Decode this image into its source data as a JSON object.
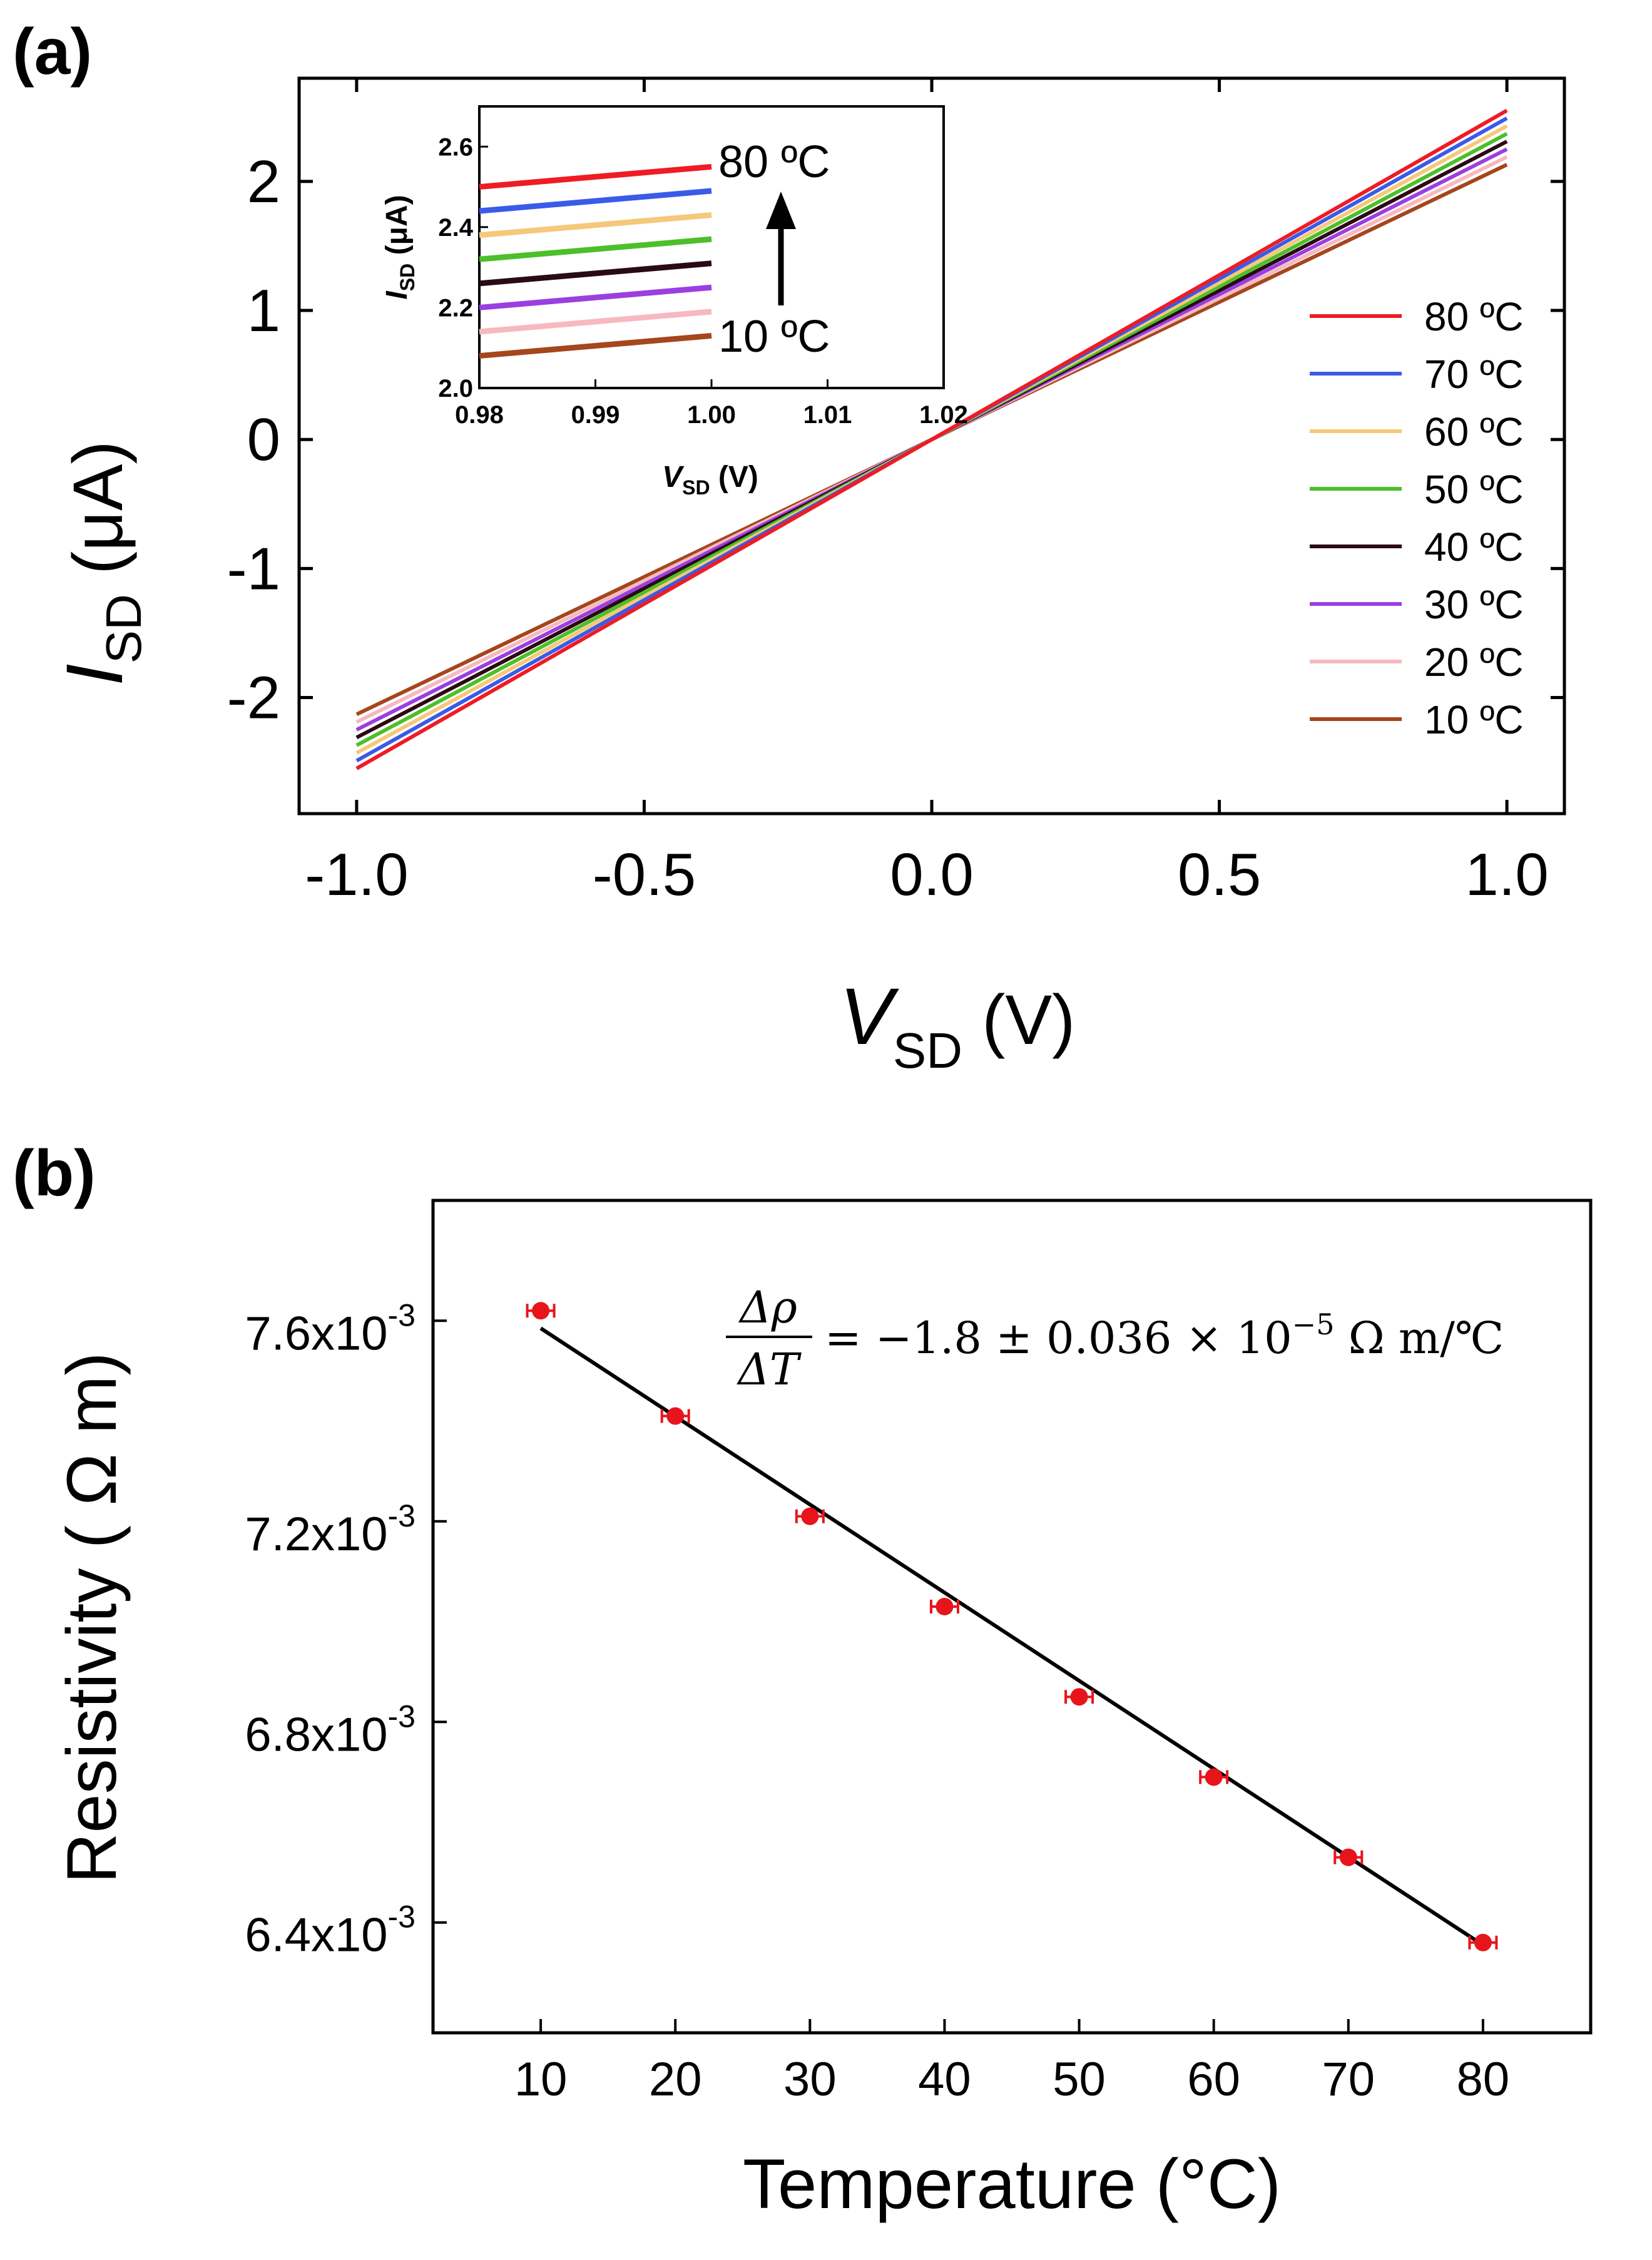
{
  "chart_data": [
    {
      "panel": "(a)",
      "type": "line",
      "xlabel": "V",
      "xlabel_sub": "SD",
      "xlabel_unit": " (V)",
      "ylabel": "I",
      "ylabel_sub": "SD",
      "ylabel_unit": " (μA)",
      "xlim": [
        -1.1,
        1.1
      ],
      "ylim": [
        -2.9,
        2.8
      ],
      "x_ticks": [
        -1.0,
        -0.5,
        0.0,
        0.5,
        1.0
      ],
      "x_tick_labels": [
        "-1.0",
        "-0.5",
        "0.0",
        "0.5",
        "1.0"
      ],
      "y_ticks": [
        -2,
        -1,
        0,
        1,
        2
      ],
      "y_tick_labels": [
        "-2",
        "-1",
        "0",
        "1",
        "2"
      ],
      "legend_position": "lower-right",
      "series": [
        {
          "name": "80 ºC",
          "color": "#ee1c24",
          "x": [
            -1.0,
            1.0
          ],
          "y": [
            -2.55,
            2.55
          ]
        },
        {
          "name": "70 ºC",
          "color": "#3a5be8",
          "x": [
            -1.0,
            1.0
          ],
          "y": [
            -2.49,
            2.49
          ]
        },
        {
          "name": "60 ºC",
          "color": "#f5c87a",
          "x": [
            -1.0,
            1.0
          ],
          "y": [
            -2.43,
            2.43
          ]
        },
        {
          "name": "50 ºC",
          "color": "#4cbf2a",
          "x": [
            -1.0,
            1.0
          ],
          "y": [
            -2.37,
            2.37
          ]
        },
        {
          "name": "40 ºC",
          "color": "#2b0a14",
          "x": [
            -1.0,
            1.0
          ],
          "y": [
            -2.31,
            2.31
          ]
        },
        {
          "name": "30 ºC",
          "color": "#9b3fe0",
          "x": [
            -1.0,
            1.0
          ],
          "y": [
            -2.25,
            2.25
          ]
        },
        {
          "name": "20 ºC",
          "color": "#f6b9c0",
          "x": [
            -1.0,
            1.0
          ],
          "y": [
            -2.19,
            2.19
          ]
        },
        {
          "name": "10 ºC",
          "color": "#a5461c",
          "x": [
            -1.0,
            1.0
          ],
          "y": [
            -2.13,
            2.13
          ]
        }
      ],
      "inset": {
        "type": "line",
        "xlabel": "V",
        "xlabel_sub": "SD",
        "xlabel_unit": " (V)",
        "ylabel": "I",
        "ylabel_sub": "SD",
        "ylabel_unit": " (μA)",
        "xlim": [
          0.98,
          1.02
        ],
        "ylim": [
          2.0,
          2.7
        ],
        "x_ticks": [
          0.98,
          0.99,
          1.0,
          1.01,
          1.02
        ],
        "x_tick_labels": [
          "0.98",
          "0.99",
          "1.00",
          "1.01",
          "1.02"
        ],
        "y_ticks": [
          2.0,
          2.2,
          2.4,
          2.6
        ],
        "y_tick_labels": [
          "2.0",
          "2.2",
          "2.4",
          "2.6"
        ],
        "annotation_top": "80 ºC",
        "annotation_bottom": "10 ºC",
        "series": [
          {
            "name": "80 ºC",
            "color": "#ee1c24",
            "x": [
              0.98,
              1.0
            ],
            "y": [
              2.5,
              2.55
            ]
          },
          {
            "name": "70 ºC",
            "color": "#3a5be8",
            "x": [
              0.98,
              1.0
            ],
            "y": [
              2.44,
              2.49
            ]
          },
          {
            "name": "60 ºC",
            "color": "#f5c87a",
            "x": [
              0.98,
              1.0
            ],
            "y": [
              2.38,
              2.43
            ]
          },
          {
            "name": "50 ºC",
            "color": "#4cbf2a",
            "x": [
              0.98,
              1.0
            ],
            "y": [
              2.32,
              2.37
            ]
          },
          {
            "name": "40 ºC",
            "color": "#2b0a14",
            "x": [
              0.98,
              1.0
            ],
            "y": [
              2.26,
              2.31
            ]
          },
          {
            "name": "30 ºC",
            "color": "#9b3fe0",
            "x": [
              0.98,
              1.0
            ],
            "y": [
              2.2,
              2.25
            ]
          },
          {
            "name": "20 ºC",
            "color": "#f6b9c0",
            "x": [
              0.98,
              1.0
            ],
            "y": [
              2.14,
              2.19
            ]
          },
          {
            "name": "10 ºC",
            "color": "#a5461c",
            "x": [
              0.98,
              1.0
            ],
            "y": [
              2.08,
              2.13
            ]
          }
        ]
      }
    },
    {
      "panel": "(b)",
      "type": "scatter",
      "xlabel": "Temperature (°C)",
      "ylabel": "Resistivity ( Ω m)",
      "xlim": [
        2,
        88
      ],
      "ylim": [
        0.00618,
        0.00784
      ],
      "x_ticks": [
        10,
        20,
        30,
        40,
        50,
        60,
        70,
        80
      ],
      "x_tick_labels": [
        "10",
        "20",
        "30",
        "40",
        "50",
        "60",
        "70",
        "80"
      ],
      "y_ticks": [
        0.0064,
        0.0068,
        0.0072,
        0.0076
      ],
      "y_tick_labels": [
        {
          "mant": "6.4x10",
          "exp": "-3"
        },
        {
          "mant": "6.8x10",
          "exp": "-3"
        },
        {
          "mant": "7.2x10",
          "exp": "-3"
        },
        {
          "mant": "7.6x10",
          "exp": "-3"
        }
      ],
      "point_color": "#e8141c",
      "fit_color": "#000000",
      "x": [
        10,
        20,
        30,
        40,
        50,
        60,
        70,
        80
      ],
      "y": [
        0.00762,
        0.00741,
        0.00721,
        0.00703,
        0.00685,
        0.00669,
        0.00653,
        0.00636
      ],
      "x_err": [
        1,
        1,
        1,
        1,
        1,
        1,
        1,
        1
      ],
      "fit": {
        "x": [
          10,
          80
        ],
        "y": [
          0.007585,
          0.006355
        ]
      },
      "equation": {
        "num": "Δρ",
        "den": "ΔT",
        "rhs": "= −1.8 ± 0.036 × 10",
        "exp": "−5",
        "unit": " Ω m/℃"
      }
    }
  ]
}
